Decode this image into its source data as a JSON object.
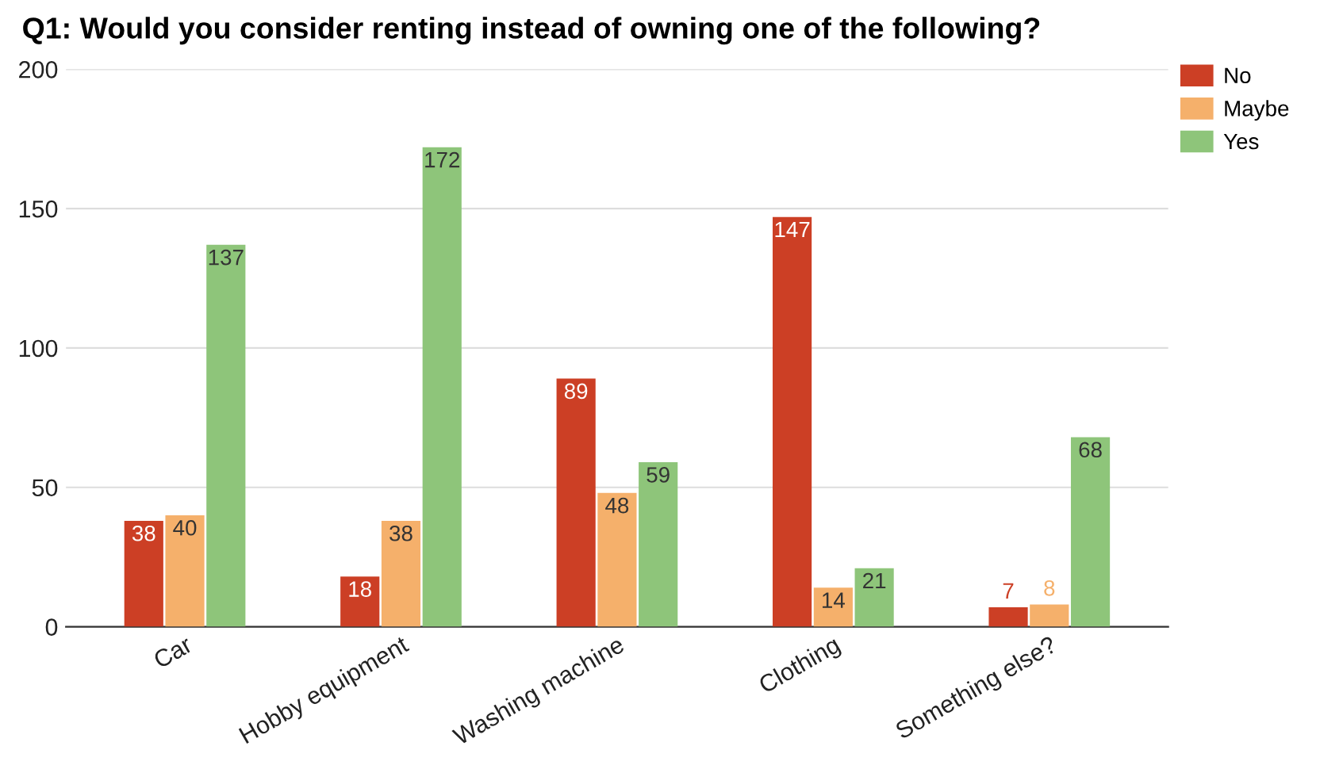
{
  "chart_data": {
    "type": "bar",
    "title": "Q1: Would you consider renting instead of owning one of the following?",
    "categories": [
      "Car",
      "Hobby equipment",
      "Washing machine",
      "Clothing",
      "Something else?"
    ],
    "series": [
      {
        "name": "No",
        "color": "#cc3f25",
        "values": [
          38,
          18,
          89,
          147,
          7
        ]
      },
      {
        "name": "Maybe",
        "color": "#f5b06b",
        "values": [
          40,
          38,
          48,
          14,
          8
        ]
      },
      {
        "name": "Yes",
        "color": "#8ec57a",
        "values": [
          137,
          172,
          59,
          21,
          68
        ]
      }
    ],
    "ylim": [
      0,
      200
    ],
    "yticks": [
      0,
      50,
      100,
      150,
      200
    ],
    "grid": "y",
    "legend": "top right",
    "data_labels": true
  }
}
